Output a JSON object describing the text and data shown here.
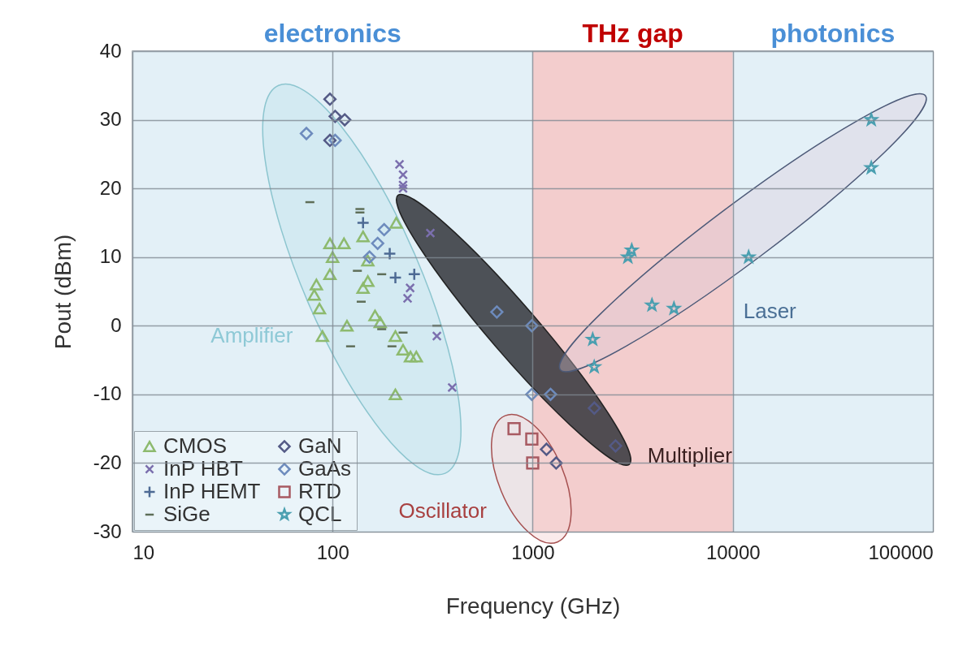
{
  "chart_data": {
    "type": "scatter",
    "xlabel": "Frequency (GHz)",
    "ylabel": "Pout (dBm)",
    "log": "x",
    "xlim": [
      10,
      100000
    ],
    "xticks": [
      10,
      100,
      1000,
      10000,
      100000
    ],
    "ylim": [
      -30,
      40
    ],
    "yticks": [
      -30,
      -20,
      -10,
      0,
      10,
      20,
      30,
      40
    ],
    "grid": true,
    "legend": "bottom left",
    "bands": [
      {
        "axis": "x",
        "from": 10,
        "to": 1000,
        "label": "electronics",
        "color": "#e3f0f7"
      },
      {
        "axis": "x",
        "from": 1000,
        "to": 10000,
        "label": "THz gap",
        "color": "#f3cdcd"
      },
      {
        "axis": "x",
        "from": 10000,
        "to": 100000,
        "label": "photonics",
        "color": "#e3f0f7"
      }
    ],
    "annotations": [
      "Amplifier",
      "Multiplier",
      "Oscillator",
      "Laser"
    ],
    "series": [
      {
        "name": "CMOS",
        "color": "#8dba6e",
        "marker": "triangle",
        "x": [
          208,
          142,
          97,
          114,
          100,
          150,
          97,
          150,
          142,
          83,
          81,
          86,
          163,
          173,
          118,
          89,
          206,
          225,
          262,
          245,
          206
        ],
        "values": [
          15,
          13,
          12,
          12,
          10,
          9.5,
          7.5,
          6.5,
          5.5,
          6,
          4.5,
          2.5,
          1.5,
          0.5,
          0,
          -1.5,
          -1.5,
          -3.5,
          -4.5,
          -4.5,
          -10
        ]
      },
      {
        "name": "InP HBT",
        "color": "#7b6fae",
        "marker": "cross",
        "x": [
          216,
          225,
          225,
          225,
          308,
          244,
          237,
          332,
          396
        ],
        "values": [
          23.5,
          22,
          20.5,
          20,
          13.5,
          5.5,
          4,
          -1.5,
          -9
        ]
      },
      {
        "name": "InP HEMT",
        "color": "#4d6a94",
        "marker": "plus",
        "x": [
          142,
          193,
          206,
          256
        ],
        "values": [
          15,
          10.5,
          7,
          7.5
        ]
      },
      {
        "name": "SiGe",
        "color": "#5e6e58",
        "x": [
          77,
          137,
          137,
          133,
          176,
          139,
          332,
          123,
          176,
          225,
          198
        ],
        "values": [
          18,
          17,
          16.5,
          8,
          7.5,
          3.5,
          0,
          -3,
          -0.5,
          -1,
          -3
        ]
      },
      {
        "name": "GaN",
        "color": "#545a86",
        "marker": "diamond",
        "x": [
          97,
          103,
          115,
          97,
          1172,
          1310,
          2032,
          2594
        ],
        "values": [
          33,
          30.5,
          30,
          27,
          -18,
          -20,
          -12,
          -17.5
        ]
      },
      {
        "name": "GaAs",
        "color": "#6d8bbd",
        "marker": "diamond",
        "x": [
          74,
          103,
          181,
          168,
          153,
          662,
          990,
          990,
          1228
        ],
        "values": [
          28,
          27,
          14,
          12,
          10,
          2,
          0,
          -10,
          -10
        ]
      },
      {
        "name": "RTD",
        "color": "#a85a62",
        "marker": "square",
        "x": [
          807,
          990,
          1000
        ],
        "values": [
          -15,
          -16.5,
          -20
        ]
      },
      {
        "name": "QCL",
        "color": "#4a9fb0",
        "marker": "star",
        "x": [
          49200,
          49200,
          12000,
          3126,
          2990,
          3945,
          5080,
          1995,
          2030
        ],
        "values": [
          30,
          23,
          10,
          11,
          10,
          3,
          2.5,
          -2,
          -6
        ]
      }
    ]
  }
}
